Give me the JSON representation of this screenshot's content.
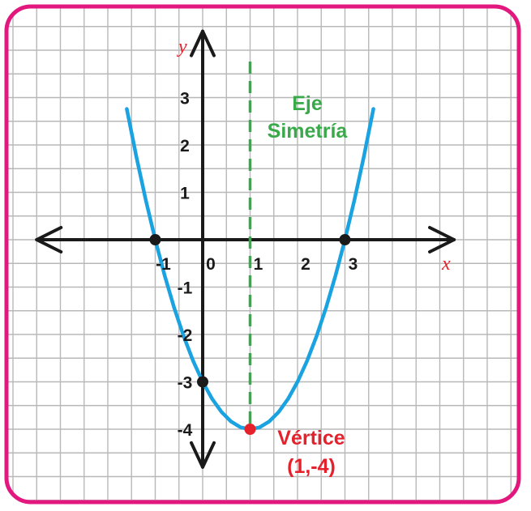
{
  "chart_data": {
    "type": "line",
    "function": "y = x^2 - 2x - 3",
    "xlabel": "x",
    "ylabel": "y",
    "x_ticks": [
      "-1",
      "0",
      "1",
      "2",
      "3"
    ],
    "y_ticks": [
      "3",
      "2",
      "1",
      "-1",
      "-2",
      "-3",
      "-4"
    ],
    "xlim": [
      -3.5,
      5.3
    ],
    "ylim": [
      -4.8,
      4.4
    ],
    "grid": true,
    "series": [
      {
        "x": [
          -1.6,
          -1.4,
          -1.2,
          -1,
          -0.8,
          -0.6,
          -0.4,
          -0.2,
          0,
          0.2,
          0.4,
          0.6,
          0.8,
          1,
          1.2,
          1.4,
          1.6,
          1.8,
          2,
          2.2,
          2.4,
          2.6,
          2.8,
          3,
          3.2,
          3.4,
          3.6
        ],
        "y": [
          2.76,
          1.76,
          0.84,
          0,
          -0.76,
          -1.44,
          -2.04,
          -2.56,
          -3,
          -3.36,
          -3.64,
          -3.84,
          -3.96,
          -4,
          -3.96,
          -3.84,
          -3.64,
          -3.36,
          -3,
          -2.56,
          -2.04,
          -1.44,
          -0.76,
          0,
          0.84,
          1.76,
          2.76
        ]
      }
    ],
    "key_points": [
      {
        "x": -1,
        "y": 0
      },
      {
        "x": 3,
        "y": 0
      },
      {
        "x": 0,
        "y": -3
      },
      {
        "x": 1,
        "y": -4
      }
    ],
    "axis_of_symmetry": {
      "x": 1,
      "label_line1": "Eje",
      "label_line2": "Simetría"
    },
    "vertex_annotation": {
      "label_line1": "Vértice",
      "label_line2": "(1,-4)"
    },
    "colors": {
      "frame": "#e2187f",
      "grid": "#b8b8b8",
      "curve": "#1aa3e0",
      "symmetry": "#3aa94a",
      "vertex": "#e5212c",
      "points": "#1a1a1a"
    }
  }
}
